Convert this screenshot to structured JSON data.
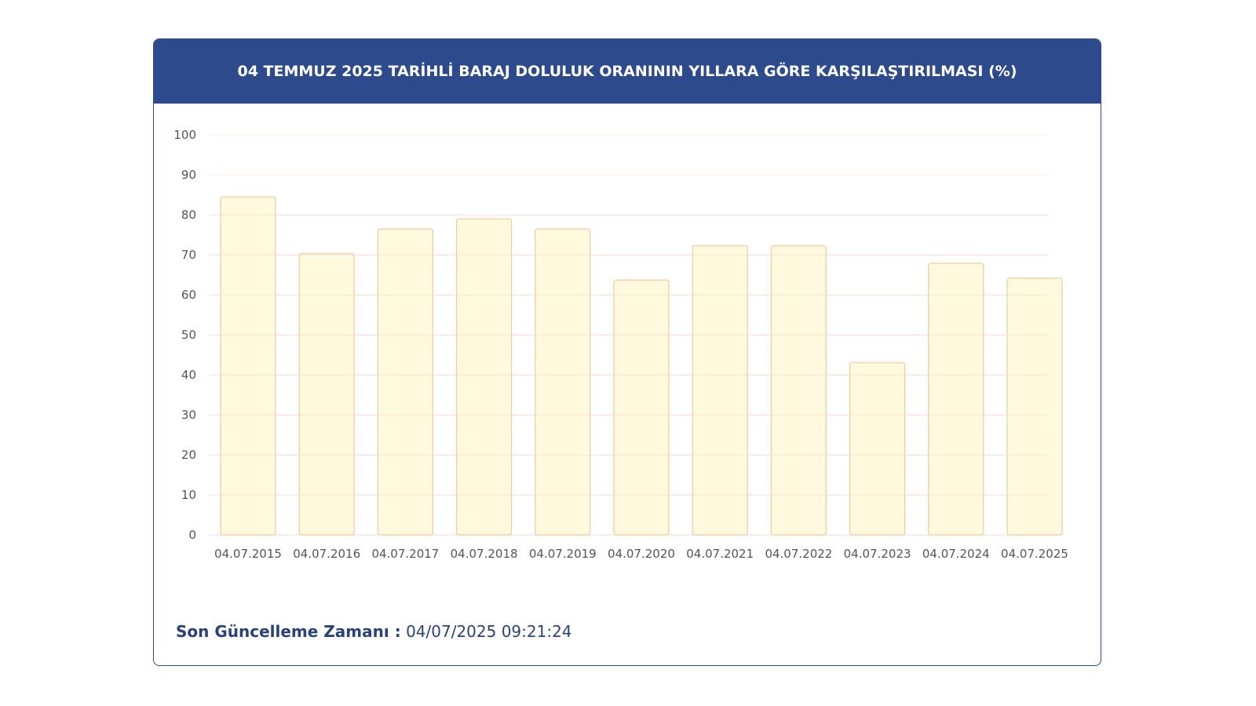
{
  "header": {
    "title": "04 TEMMUZ 2025 TARİHLİ BARAJ DOLULUK ORANININ YILLARA GÖRE KARŞILAŞTIRILMASI (%)"
  },
  "footer": {
    "label": "Son Güncelleme Zamanı :",
    "value": "04/07/2025 09:21:24"
  },
  "colors": {
    "header_bg": "#2c4a8c",
    "bar_fill": "#fff8d8",
    "bar_stroke": "#f2c9a3",
    "grid": "#f6d9d0",
    "text_dark": "#2a4275",
    "tick_text": "#555555"
  },
  "chart_data": {
    "type": "bar",
    "title": "04 TEMMUZ 2025 TARİHLİ BARAJ DOLULUK ORANININ YILLARA GÖRE KARŞILAŞTIRILMASI (%)",
    "xlabel": "",
    "ylabel": "",
    "ylim": [
      0,
      100
    ],
    "yticks": [
      0,
      10,
      20,
      30,
      40,
      50,
      60,
      70,
      80,
      90,
      100
    ],
    "grid": true,
    "categories": [
      "04.07.2015",
      "04.07.2016",
      "04.07.2017",
      "04.07.2018",
      "04.07.2019",
      "04.07.2020",
      "04.07.2021",
      "04.07.2022",
      "04.07.2023",
      "04.07.2024",
      "04.07.2025"
    ],
    "values": [
      84.5,
      70.3,
      76.5,
      79.0,
      76.5,
      63.7,
      72.3,
      72.3,
      43.1,
      67.9,
      64.2
    ]
  }
}
